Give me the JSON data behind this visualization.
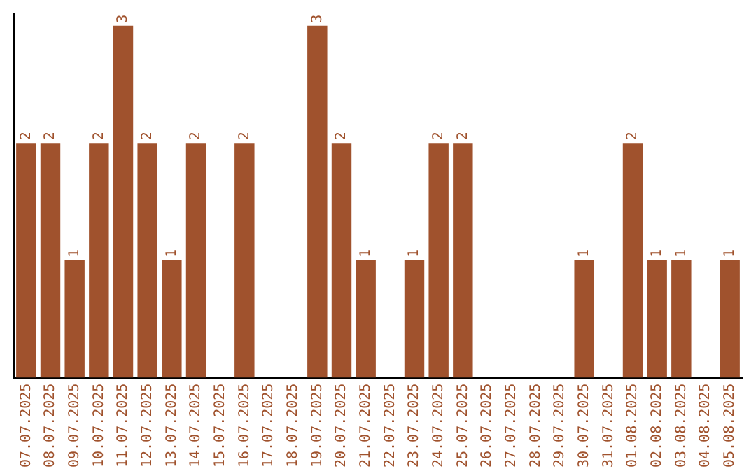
{
  "chart_data": {
    "type": "bar",
    "categories": [
      "07.07.2025",
      "08.07.2025",
      "09.07.2025",
      "10.07.2025",
      "11.07.2025",
      "12.07.2025",
      "13.07.2025",
      "14.07.2025",
      "15.07.2025",
      "16.07.2025",
      "17.07.2025",
      "18.07.2025",
      "19.07.2025",
      "20.07.2025",
      "21.07.2025",
      "22.07.2025",
      "23.07.2025",
      "24.07.2025",
      "25.07.2025",
      "26.07.2025",
      "27.07.2025",
      "28.07.2025",
      "29.07.2025",
      "30.07.2025",
      "31.07.2025",
      "01.08.2025",
      "02.08.2025",
      "03.08.2025",
      "04.08.2025",
      "05.08.2025"
    ],
    "values": [
      2,
      2,
      1,
      2,
      3,
      2,
      1,
      2,
      0,
      2,
      0,
      0,
      3,
      2,
      1,
      0,
      1,
      2,
      2,
      0,
      0,
      0,
      0,
      1,
      0,
      2,
      1,
      1,
      0,
      1
    ],
    "value_labels": [
      "2",
      "2",
      "1",
      "2",
      "3",
      "2",
      "1",
      "2",
      null,
      "2",
      null,
      null,
      "3",
      "2",
      "1",
      null,
      "1",
      "2",
      "2",
      null,
      null,
      null,
      null,
      "1",
      null,
      "2",
      "1",
      "1",
      null,
      "1"
    ],
    "color": "#a0522d",
    "ylim": [
      0,
      3.1
    ],
    "tick_labels": "x",
    "grid": false,
    "legend": false
  }
}
